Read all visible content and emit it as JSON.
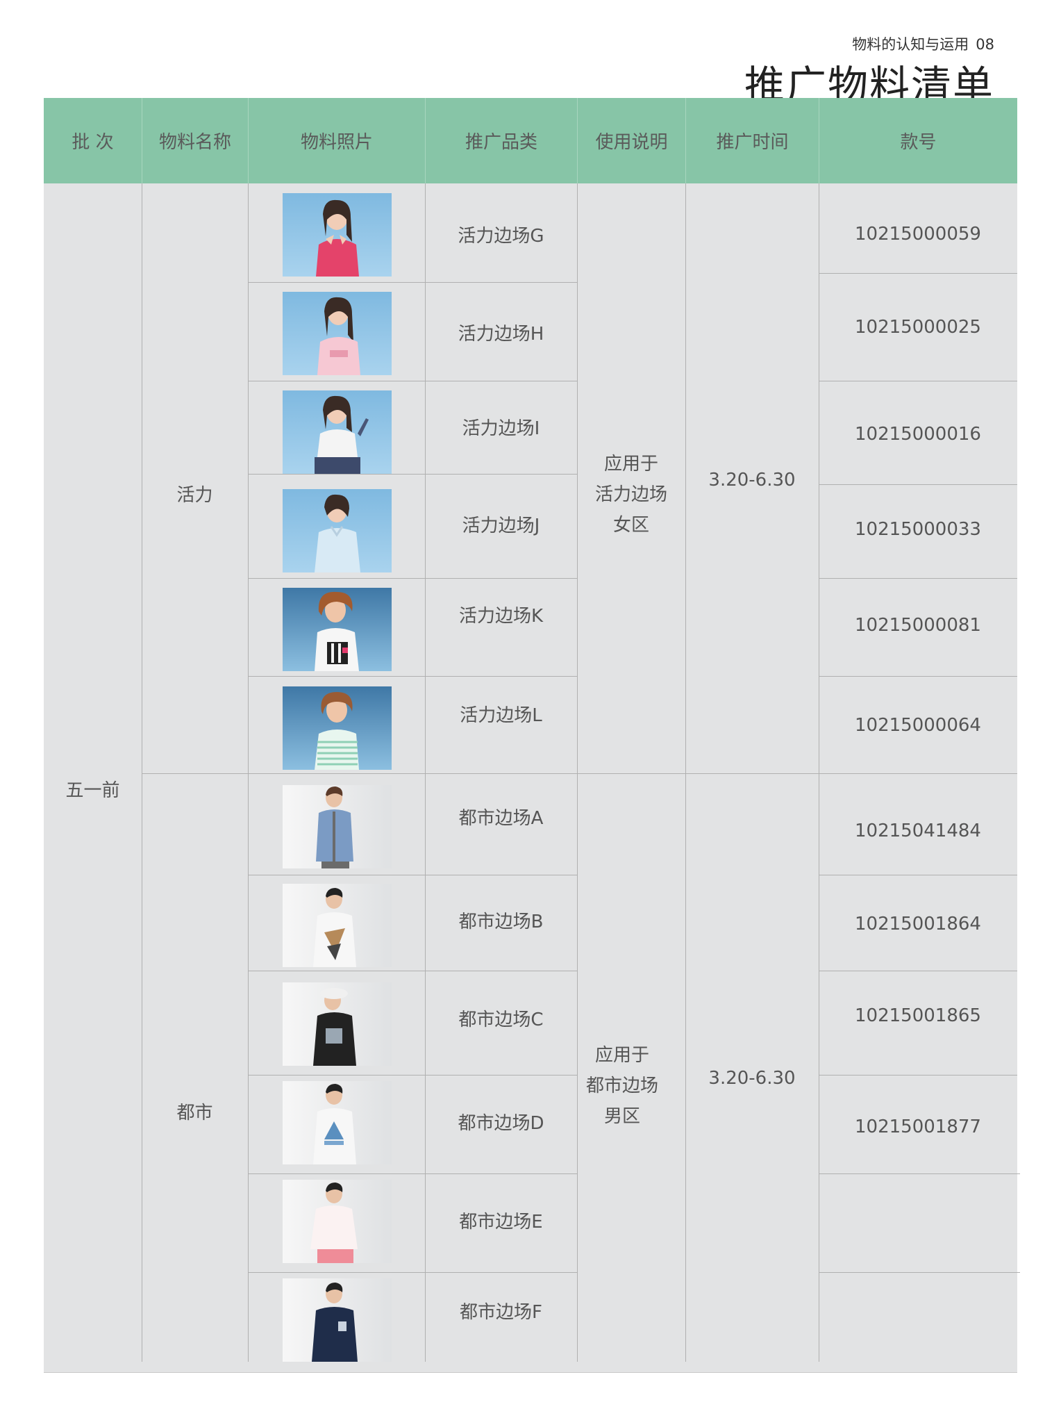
{
  "header": {
    "subtitle": "物料的认知与运用",
    "page_number": "08",
    "title": "推广物料清单"
  },
  "table": {
    "columns": [
      "批 次",
      "物料名称",
      "物料照片",
      "推广品类",
      "使用说明",
      "推广时间",
      "款号"
    ],
    "batch": "五一前",
    "groups": [
      {
        "name": "活力",
        "usage": [
          "应用于",
          "活力边场",
          "女区"
        ],
        "time": "3.20-6.30",
        "items": [
          {
            "category": "活力边场G",
            "photo": "woman-pink-tshirt-photo"
          },
          {
            "category": "活力边场H",
            "photo": "woman-light-pink-tshirt-photo"
          },
          {
            "category": "活力边场I",
            "photo": "woman-white-tshirt-photo"
          },
          {
            "category": "活力边场J",
            "photo": "woman-light-blue-polo-photo"
          },
          {
            "category": "活力边场K",
            "photo": "woman-white-graphic-tshirt-photo"
          },
          {
            "category": "活力边场L",
            "photo": "woman-striped-tshirt-photo"
          }
        ],
        "codes": [
          "10215000059",
          "10215000025",
          "10215000016",
          "10215000033",
          "10215000081",
          "10215000064"
        ]
      },
      {
        "name": "都市",
        "usage": [
          "应用于",
          "都市边场",
          "男区"
        ],
        "time": "3.20-6.30",
        "items": [
          {
            "category": "都市边场A",
            "photo": "man-blue-shirt-photo"
          },
          {
            "category": "都市边场B",
            "photo": "man-triangle-tshirt-photo"
          },
          {
            "category": "都市边场C",
            "photo": "man-black-tshirt-hat-photo"
          },
          {
            "category": "都市边场D",
            "photo": "man-white-print-tshirt-photo"
          },
          {
            "category": "都市边场E",
            "photo": "man-white-shirt-pink-pants-photo"
          },
          {
            "category": "都市边场F",
            "photo": "man-navy-tshirt-photo"
          }
        ],
        "codes": [
          "10215041484",
          "10215001864",
          "10215001865",
          "10215001877"
        ]
      }
    ]
  },
  "colors": {
    "header_bg": "#87c5a7",
    "body_bg": "#e2e3e4",
    "grid_line": "#b0b0b0"
  }
}
